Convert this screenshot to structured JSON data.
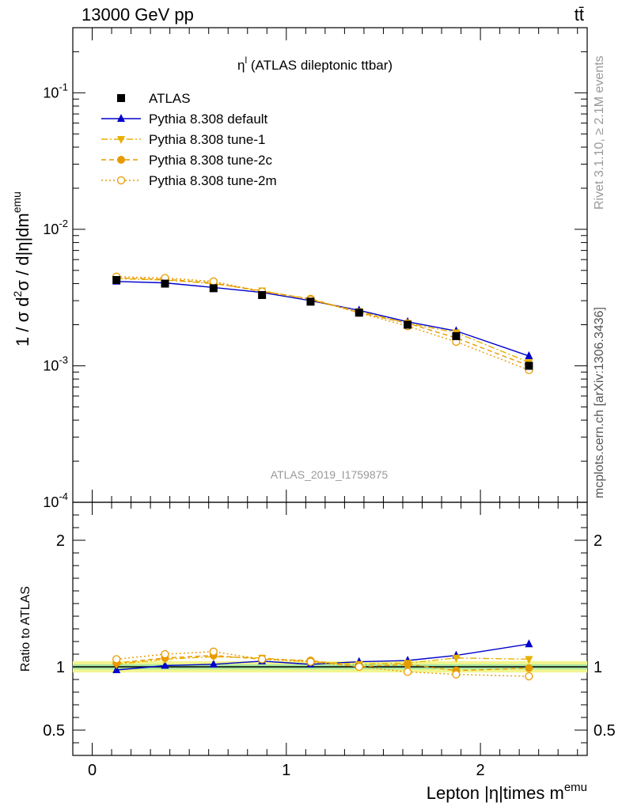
{
  "header": {
    "left": "13000 GeV pp",
    "right": "tt̄"
  },
  "side_labels": {
    "rivet": "Rivet 3.1.10, ≥ 2.1M events",
    "mcplots": "mcplots.cern.ch [arXiv:1306.3436]"
  },
  "chart_data": [
    {
      "type": "line",
      "title": "η^l (ATLAS dileptonic ttbar)",
      "watermark": "ATLAS_2019_I1759875",
      "ylabel": "1 / σ d²σ / d|η|dm^emu",
      "yscale": "log",
      "ylim": [
        0.0001,
        0.3
      ],
      "xlim": [
        -0.1,
        2.55
      ],
      "legend_position": "top-left",
      "x": [
        0.125,
        0.375,
        0.625,
        0.875,
        1.125,
        1.375,
        1.625,
        1.875,
        2.25
      ],
      "series": [
        {
          "name": "ATLAS",
          "color": "#000000",
          "marker": "square",
          "values": [
            0.00425,
            0.004,
            0.0037,
            0.0033,
            0.00295,
            0.00245,
            0.002,
            0.00165,
            0.001
          ]
        },
        {
          "name": "Pythia 8.308 default",
          "color": "#0000cc",
          "marker": "triangle-up",
          "dash": "solid",
          "values": [
            0.00415,
            0.00405,
            0.00375,
            0.00345,
            0.003,
            0.00255,
            0.0021,
            0.0018,
            0.00118
          ]
        },
        {
          "name": "Pythia 8.308 tune-1",
          "color": "#e8b000",
          "marker": "triangle-down",
          "dash": "dashdot",
          "values": [
            0.00435,
            0.00425,
            0.004,
            0.00355,
            0.00305,
            0.0025,
            0.00205,
            0.00175,
            0.00106
          ]
        },
        {
          "name": "Pythia 8.308 tune-2c",
          "color": "#e89a00",
          "marker": "circle",
          "dash": "dashed",
          "values": [
            0.0044,
            0.0043,
            0.00405,
            0.0035,
            0.0031,
            0.00245,
            0.00205,
            0.0016,
            0.001
          ]
        },
        {
          "name": "Pythia 8.308 tune-2m",
          "color": "#e89a00",
          "marker": "circle-open",
          "dash": "dotted",
          "values": [
            0.0045,
            0.0044,
            0.00415,
            0.0035,
            0.00305,
            0.00245,
            0.00195,
            0.0015,
            0.00093
          ]
        }
      ]
    },
    {
      "type": "line",
      "ylabel": "Ratio to ATLAS",
      "xlabel": "Lepton |η|times m^emu",
      "ylim": [
        0.3,
        2.3
      ],
      "yticks": [
        0.5,
        1,
        2
      ],
      "xticks": [
        0,
        1,
        2
      ],
      "x": [
        0.125,
        0.375,
        0.625,
        0.875,
        1.125,
        1.375,
        1.625,
        1.875,
        2.25
      ],
      "band": {
        "center": 1.0,
        "inner": 0.02,
        "outer": 0.045
      },
      "series": [
        {
          "name": "Pythia 8.308 default",
          "values": [
            0.975,
            1.01,
            1.02,
            1.045,
            1.02,
            1.04,
            1.05,
            1.09,
            1.18
          ]
        },
        {
          "name": "Pythia 8.308 tune-1",
          "values": [
            1.02,
            1.06,
            1.08,
            1.07,
            1.04,
            1.02,
            1.03,
            1.07,
            1.06
          ]
        },
        {
          "name": "Pythia 8.308 tune-2c",
          "values": [
            1.03,
            1.07,
            1.09,
            1.06,
            1.05,
            1.0,
            1.02,
            0.97,
            0.99
          ]
        },
        {
          "name": "Pythia 8.308 tune-2m",
          "values": [
            1.06,
            1.1,
            1.12,
            1.06,
            1.04,
            1.0,
            0.96,
            0.94,
            0.925
          ]
        }
      ]
    }
  ]
}
